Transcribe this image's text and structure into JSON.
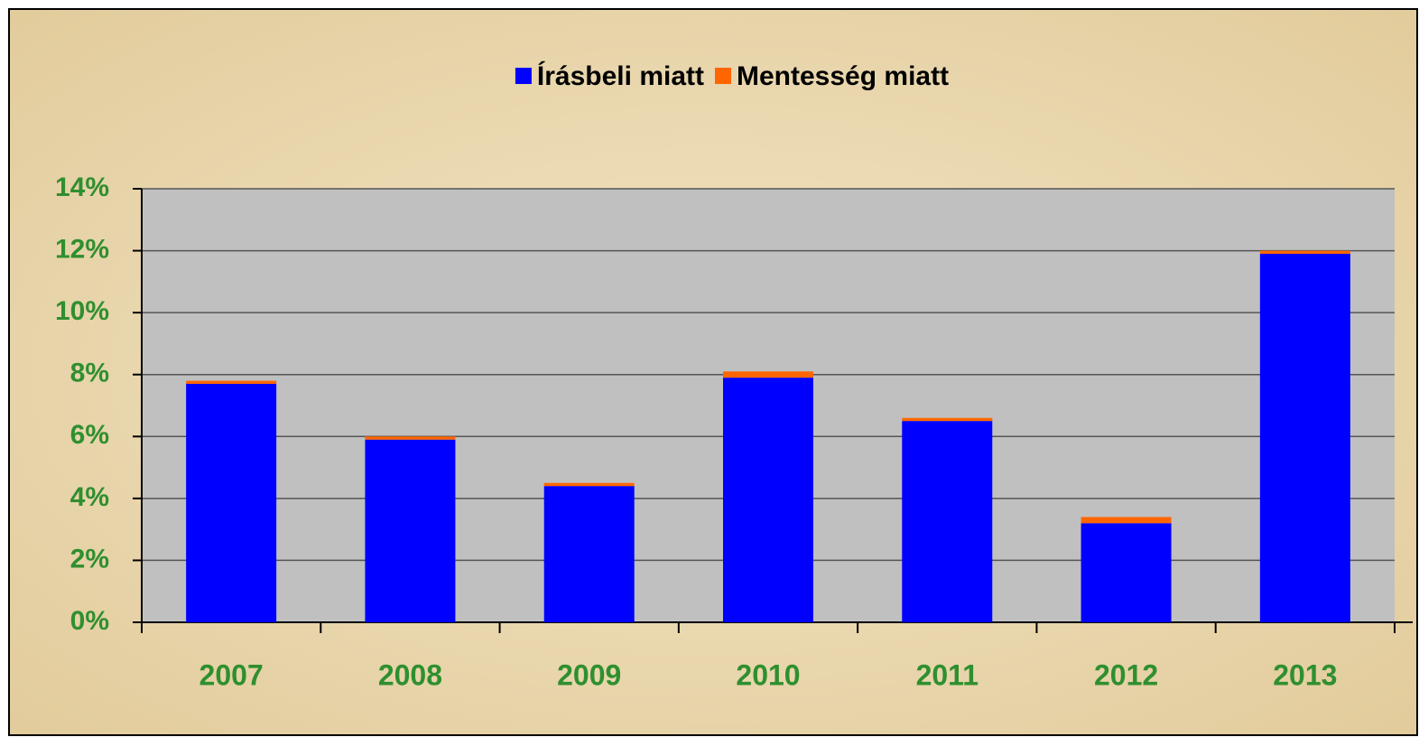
{
  "chart_data": {
    "type": "stacked_bar",
    "categories": [
      "2007",
      "2008",
      "2009",
      "2010",
      "2011",
      "2012",
      "2013"
    ],
    "series": [
      {
        "name": "Írásbeli miatt",
        "color": "#0000ff",
        "values": [
          7.7,
          5.9,
          4.4,
          7.9,
          6.5,
          3.2,
          11.9
        ]
      },
      {
        "name": "Mentesség miatt",
        "color": "#ff6600",
        "values": [
          0.1,
          0.1,
          0.1,
          0.2,
          0.1,
          0.2,
          0.1
        ]
      }
    ],
    "ylim": [
      0,
      14
    ],
    "yticks": [
      {
        "value": 0,
        "label": "0%"
      },
      {
        "value": 2,
        "label": "2%"
      },
      {
        "value": 4,
        "label": "4%"
      },
      {
        "value": 6,
        "label": "6%"
      },
      {
        "value": 8,
        "label": "8%"
      },
      {
        "value": 10,
        "label": "10%"
      },
      {
        "value": 12,
        "label": "12%"
      },
      {
        "value": 14,
        "label": "14%"
      }
    ],
    "grid": true,
    "legend": "top"
  }
}
